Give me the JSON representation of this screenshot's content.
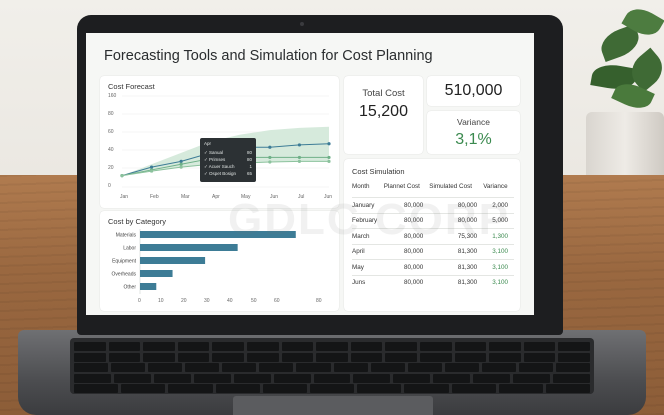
{
  "dashboard": {
    "title": "Forecasting Tools and Simulation for Cost Planning",
    "watermark": "GDLC CORP"
  },
  "forecast_card": {
    "title": "Cost Forecast",
    "y_ticks": [
      "160",
      "80",
      "60",
      "40",
      "20",
      "0"
    ],
    "x_ticks": [
      "Jan",
      "Feb",
      "Mar",
      "Apr",
      "May",
      "Jun",
      "Jul",
      "Jun"
    ],
    "tooltip": {
      "header": "Apr",
      "rows": [
        {
          "label": "Sanual",
          "value": "80"
        },
        {
          "label": "Primses",
          "value": "80"
        },
        {
          "label": "Acuer Sauch",
          "value": "1"
        },
        {
          "label": "Ospet Bosign",
          "value": "65"
        }
      ]
    }
  },
  "kpis": {
    "total_cost_label": "Total Cost",
    "total_cost_value": "15,200",
    "top_value": "510,000",
    "variance_label": "Variance",
    "variance_value": "3,1%"
  },
  "category_card": {
    "title": "Cost by Category",
    "x_ticks": [
      "0",
      "10",
      "20",
      "30",
      "40",
      "50",
      "60",
      "80"
    ]
  },
  "simulation": {
    "title": "Cost Simulation",
    "headers": [
      "Month",
      "Plannet Cost",
      "Simulated Cost",
      "Variance"
    ],
    "rows": [
      {
        "month": "January",
        "planned": "80,000",
        "simulated": "80,000",
        "variance": "2,000",
        "green": false
      },
      {
        "month": "February",
        "planned": "80,000",
        "simulated": "80,000",
        "variance": "5,000",
        "green": false
      },
      {
        "month": "March",
        "planned": "80,000",
        "simulated": "75,300",
        "variance": "1,300",
        "green": true
      },
      {
        "month": "April",
        "planned": "80,000",
        "simulated": "81,300",
        "variance": "3,100",
        "green": true
      },
      {
        "month": "May",
        "planned": "80,000",
        "simulated": "81,300",
        "variance": "3,100",
        "green": true
      },
      {
        "month": "Juns",
        "planned": "80,000",
        "simulated": "81,300",
        "variance": "3,100",
        "green": true
      }
    ]
  },
  "chart_data": [
    {
      "type": "line",
      "title": "Cost Forecast",
      "categories": [
        "Jan",
        "Feb",
        "Mar",
        "Apr",
        "May",
        "Jun",
        "Jul",
        "Jun"
      ],
      "ylim": [
        0,
        160
      ],
      "grid": true,
      "series": [
        {
          "values": [
            20,
            35,
            45,
            60,
            70,
            70,
            74,
            76
          ],
          "color": "#3d7c96"
        },
        {
          "values": [
            20,
            30,
            40,
            50,
            52,
            52,
            52,
            52
          ],
          "color": "#6fb088"
        },
        {
          "values": [
            20,
            28,
            35,
            40,
            42,
            44,
            45,
            45
          ],
          "color": "#8cc29d"
        }
      ],
      "band": {
        "upper": [
          20,
          40,
          60,
          80,
          92,
          100,
          104,
          106
        ],
        "lower": [
          20,
          28,
          35,
          40,
          42,
          44,
          45,
          45
        ],
        "color": "#cfe6d6"
      }
    },
    {
      "type": "bar",
      "orientation": "horizontal",
      "title": "Cost by Category",
      "categories": [
        "Materials",
        "Labor",
        "Equipment",
        "Overheads",
        "Other"
      ],
      "values": [
        67,
        42,
        28,
        14,
        7
      ],
      "xlim": [
        0,
        80
      ],
      "color": "#3d7c96"
    }
  ]
}
